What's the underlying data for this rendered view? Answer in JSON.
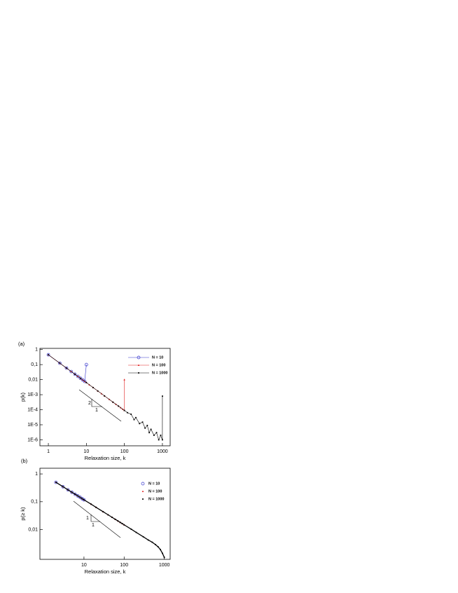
{
  "chart_data": [
    {
      "type": "line",
      "panel_label": "(a)",
      "x_label": "Relaxation size, k",
      "y_label": "p(k)",
      "log_x": true,
      "log_y": true,
      "xlim": [
        0.6,
        1600
      ],
      "ylim": [
        4e-07,
        1.2
      ],
      "xticks": [
        1,
        10,
        100,
        1000
      ],
      "yticks": [
        1,
        {
          "value": 0.1,
          "label": "0,1"
        },
        {
          "value": 0.01,
          "label": "0,01"
        },
        {
          "value": 0.001,
          "label": "1E-3"
        },
        {
          "value": 0.0001,
          "label": "1E-4"
        },
        {
          "value": 1e-05,
          "label": "1E-5"
        },
        {
          "value": 1e-06,
          "label": "1E-6"
        }
      ],
      "legend": "upper right",
      "series": [
        {
          "name": "N = 10",
          "color": "#3333cc",
          "marker": "circle",
          "show_line": true,
          "x": [
            1,
            2,
            3,
            4,
            5,
            6,
            7,
            8,
            9,
            10
          ],
          "values": [
            0.45,
            0.125,
            0.059,
            0.0346,
            0.023,
            0.0164,
            0.0123,
            0.0096,
            0.0077,
            0.1
          ]
        },
        {
          "name": "N = 100",
          "color": "#e02020",
          "marker": "triangle",
          "show_line": true,
          "x": [
            1,
            2,
            3,
            4,
            5,
            6,
            7,
            8,
            9,
            10,
            12,
            15,
            20,
            25,
            30,
            40,
            50,
            60,
            70,
            80,
            90,
            99,
            100
          ],
          "values": [
            0.45,
            0.125,
            0.059,
            0.0346,
            0.023,
            0.0164,
            0.0123,
            0.0096,
            0.0077,
            0.0064,
            0.0045,
            0.003,
            0.00176,
            0.00117,
            0.00083,
            0.00049,
            0.00032,
            0.00023,
            0.000174,
            0.000136,
            0.000109,
            9.15e-05,
            0.01
          ]
        },
        {
          "name": "N = 1000",
          "color": "#000000",
          "marker": "square",
          "show_line": true,
          "x": [
            1,
            2,
            3,
            5,
            7,
            10,
            15,
            20,
            30,
            50,
            70,
            100,
            120,
            150,
            180,
            200,
            250,
            300,
            350,
            400,
            450,
            500,
            600,
            700,
            800,
            900,
            999,
            1000
          ],
          "values": [
            0.45,
            0.125,
            0.059,
            0.023,
            0.0123,
            0.0064,
            0.003,
            0.00176,
            0.00083,
            0.00032,
            0.000174,
            9e-05,
            6.4e-05,
            5e-05,
            2.2e-05,
            3e-05,
            1.2e-05,
            1.5e-05,
            6e-06,
            9e-06,
            3e-06,
            5e-06,
            2e-06,
            3e-06,
            1e-06,
            2e-06,
            1e-06,
            0.0008
          ]
        }
      ],
      "annotations": [
        "2",
        "1"
      ]
    },
    {
      "type": "line",
      "panel_label": "(b)",
      "x_label": "Relaxation size, k",
      "y_label": "p(≥ k)",
      "log_x": true,
      "log_y": true,
      "xlim": [
        0.8,
        1400
      ],
      "ylim": [
        0.00085,
        1.6
      ],
      "xticks": [
        10,
        100,
        1000
      ],
      "yticks": [
        1,
        {
          "value": 0.1,
          "label": "0,1"
        },
        {
          "value": 0.01,
          "label": "0,01"
        }
      ],
      "legend": "upper right",
      "series": [
        {
          "name": "N = 10",
          "color": "#3333cc",
          "marker": "circle",
          "show_line": false,
          "x": [
            2,
            3,
            4,
            5,
            6,
            7,
            8,
            9,
            10
          ],
          "values": [
            0.5,
            0.347,
            0.268,
            0.219,
            0.186,
            0.162,
            0.144,
            0.129,
            0.117
          ]
        },
        {
          "name": "N = 100",
          "color": "#e02020",
          "marker": "triangle",
          "show_line": false,
          "x": [
            2,
            3,
            4,
            5,
            6,
            7,
            8,
            9,
            10,
            15,
            20,
            30,
            40,
            50,
            60,
            70,
            80,
            90,
            100
          ],
          "values": [
            0.5,
            0.347,
            0.268,
            0.219,
            0.186,
            0.162,
            0.144,
            0.129,
            0.117,
            0.082,
            0.063,
            0.0437,
            0.0338,
            0.0276,
            0.0234,
            0.0204,
            0.0181,
            0.0163,
            0.0148
          ]
        },
        {
          "name": "N = 1000",
          "color": "#000000",
          "marker": "square",
          "show_line": true,
          "x": [
            2,
            3,
            4,
            5,
            6,
            7,
            8,
            9,
            10,
            15,
            20,
            30,
            40,
            50,
            60,
            70,
            80,
            90,
            100,
            150,
            200,
            300,
            400,
            500,
            600,
            700,
            800,
            900,
            1000
          ],
          "values": [
            0.5,
            0.347,
            0.268,
            0.219,
            0.186,
            0.162,
            0.144,
            0.129,
            0.117,
            0.082,
            0.063,
            0.0437,
            0.0338,
            0.0276,
            0.0234,
            0.0204,
            0.0181,
            0.0163,
            0.0148,
            0.0103,
            0.0079,
            0.0055,
            0.0042,
            0.0035,
            0.0029,
            0.0024,
            0.0019,
            0.0014,
            0.001
          ]
        }
      ],
      "annotations": [
        "1",
        "1"
      ]
    }
  ]
}
